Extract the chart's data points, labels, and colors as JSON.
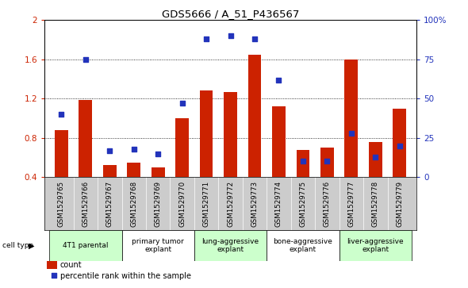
{
  "title": "GDS5666 / A_51_P436567",
  "samples": [
    "GSM1529765",
    "GSM1529766",
    "GSM1529767",
    "GSM1529768",
    "GSM1529769",
    "GSM1529770",
    "GSM1529771",
    "GSM1529772",
    "GSM1529773",
    "GSM1529774",
    "GSM1529775",
    "GSM1529776",
    "GSM1529777",
    "GSM1529778",
    "GSM1529779"
  ],
  "bar_values": [
    0.88,
    1.19,
    0.52,
    0.55,
    0.5,
    1.0,
    1.28,
    1.27,
    1.65,
    1.12,
    0.68,
    0.7,
    1.6,
    0.76,
    1.1
  ],
  "dot_pct": [
    40,
    75,
    17,
    18,
    15,
    47,
    88,
    90,
    88,
    62,
    10,
    10,
    28,
    13,
    20
  ],
  "ylim_left": [
    0.4,
    2.0
  ],
  "ylim_right": [
    0,
    100
  ],
  "yticks_left": [
    0.4,
    0.8,
    1.2,
    1.6,
    2.0
  ],
  "ytick_labels_left": [
    "0.4",
    "0.8",
    "1.2",
    "1.6",
    "2"
  ],
  "yticks_right": [
    0,
    25,
    50,
    75,
    100
  ],
  "ytick_labels_right": [
    "0",
    "25",
    "50",
    "75",
    "100%"
  ],
  "bar_color": "#cc2200",
  "dot_color": "#2233bb",
  "bg_color": "#ffffff",
  "cell_types": [
    {
      "label": "4T1 parental",
      "start": 0,
      "end": 2,
      "color": "#ccffcc"
    },
    {
      "label": "primary tumor\nexplant",
      "start": 3,
      "end": 5,
      "color": "#ffffff"
    },
    {
      "label": "lung-aggressive\nexplant",
      "start": 6,
      "end": 8,
      "color": "#ccffcc"
    },
    {
      "label": "bone-aggressive\nexplant",
      "start": 9,
      "end": 11,
      "color": "#ffffff"
    },
    {
      "label": "liver-aggressive\nexplant",
      "start": 12,
      "end": 14,
      "color": "#ccffcc"
    }
  ],
  "label_bg": "#cccccc",
  "cell_type_label": "cell type",
  "legend_count": "count",
  "legend_pct": "percentile rank within the sample",
  "tick_color_left": "#cc2200",
  "tick_color_right": "#2233bb"
}
